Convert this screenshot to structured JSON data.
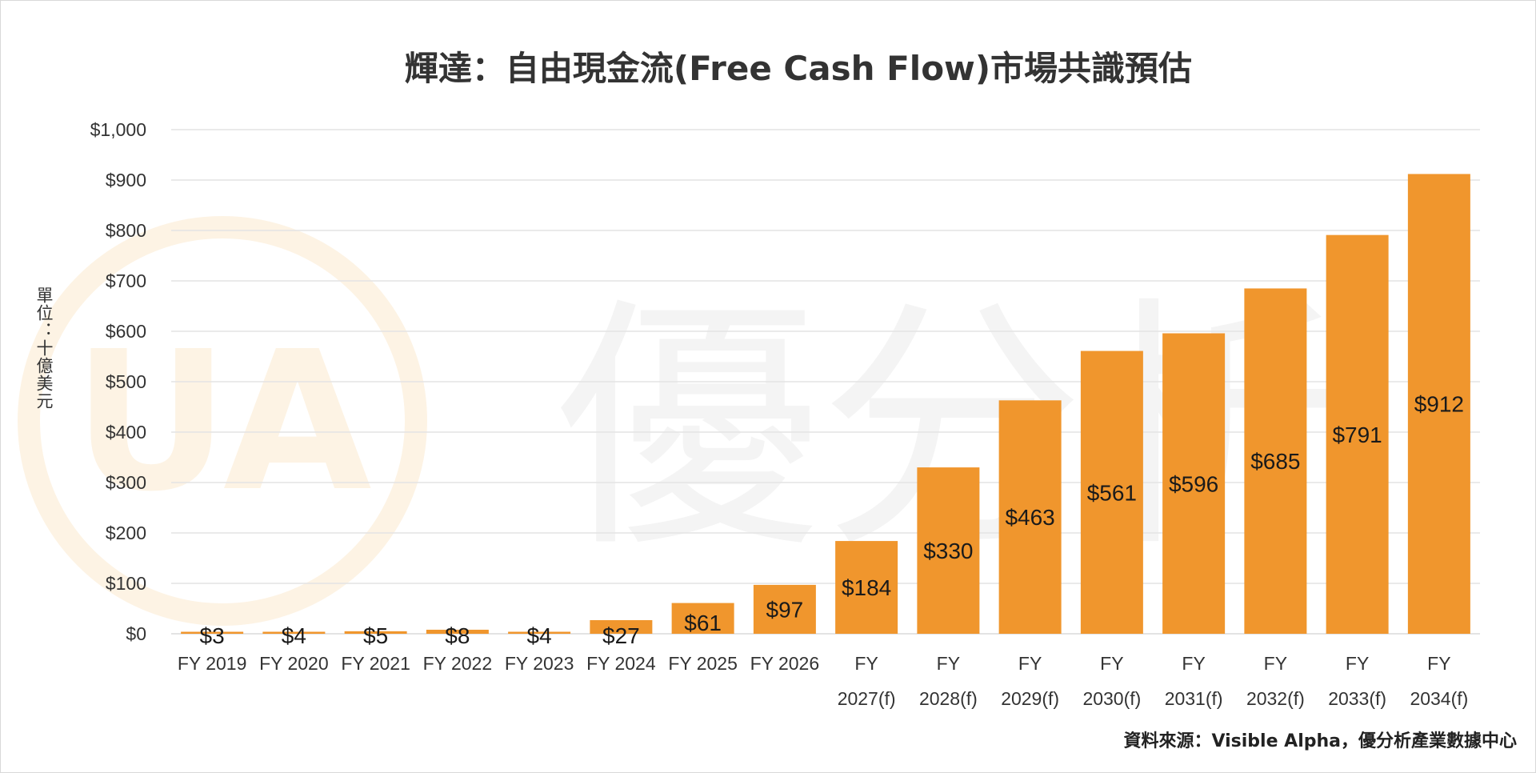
{
  "chart_data": {
    "type": "bar",
    "title": "輝達：自由現金流(Free Cash Flow)市場共識預估",
    "ylabel": "單位：十億美元",
    "xlabel": "",
    "categories": [
      {
        "line1": "FY 2019",
        "line2": ""
      },
      {
        "line1": "FY 2020",
        "line2": ""
      },
      {
        "line1": "FY 2021",
        "line2": ""
      },
      {
        "line1": "FY 2022",
        "line2": ""
      },
      {
        "line1": "FY 2023",
        "line2": ""
      },
      {
        "line1": "FY 2024",
        "line2": ""
      },
      {
        "line1": "FY 2025",
        "line2": ""
      },
      {
        "line1": "FY 2026",
        "line2": ""
      },
      {
        "line1": "FY",
        "line2": "2027(f)"
      },
      {
        "line1": "FY",
        "line2": "2028(f)"
      },
      {
        "line1": "FY",
        "line2": "2029(f)"
      },
      {
        "line1": "FY",
        "line2": "2030(f)"
      },
      {
        "line1": "FY",
        "line2": "2031(f)"
      },
      {
        "line1": "FY",
        "line2": "2032(f)"
      },
      {
        "line1": "FY",
        "line2": "2033(f)"
      },
      {
        "line1": "FY",
        "line2": "2034(f)"
      }
    ],
    "values": [
      3,
      4,
      5,
      8,
      4,
      27,
      61,
      97,
      184,
      330,
      463,
      561,
      596,
      685,
      791,
      912
    ],
    "data_labels": [
      "$3",
      "$4",
      "$5",
      "$8",
      "$4",
      "$27",
      "$61",
      "$97",
      "$184",
      "$330",
      "$463",
      "$561",
      "$596",
      "$685",
      "$791",
      "$912"
    ],
    "ylim": [
      0,
      1000
    ],
    "yticks": [
      0,
      100,
      200,
      300,
      400,
      500,
      600,
      700,
      800,
      900,
      1000
    ],
    "ytick_labels": [
      "$0",
      "$100",
      "$200",
      "$300",
      "$400",
      "$500",
      "$600",
      "$700",
      "$800",
      "$900",
      "$1,000"
    ],
    "grid": true,
    "legend": "none",
    "bar_color": "#F0962D",
    "grid_color": "#E3E3E3"
  },
  "source_note": "資料來源：Visible Alpha，優分析產業數據中心",
  "watermark": {
    "logo_mark": "UA",
    "text": "優分析",
    "ring_color": "#FDF3E4",
    "text_color": "#F4F4F4"
  }
}
